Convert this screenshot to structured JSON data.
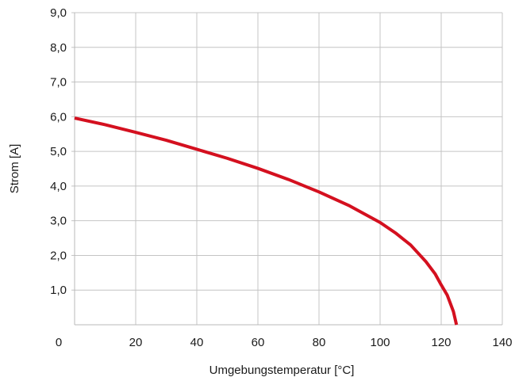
{
  "chart_data": {
    "type": "line",
    "title": "",
    "xlabel": "Umgebungstemperatur [°C]",
    "ylabel": "Strom [A]",
    "xlim": [
      0,
      140
    ],
    "ylim": [
      0,
      9
    ],
    "grid": true,
    "x_ticks": [
      0,
      20,
      40,
      60,
      80,
      100,
      120,
      140
    ],
    "x_tick_labels": [
      "0",
      "20",
      "40",
      "60",
      "80",
      "100",
      "120",
      "140"
    ],
    "y_ticks": [
      1,
      2,
      3,
      4,
      5,
      6,
      7,
      8,
      9
    ],
    "y_tick_labels": [
      "1,0",
      "2,0",
      "3,0",
      "4,0",
      "5,0",
      "6,0",
      "7,0",
      "8,0",
      "9,0"
    ],
    "series": [
      {
        "color": "#d4101f",
        "x": [
          0,
          10,
          20,
          30,
          40,
          50,
          60,
          70,
          80,
          90,
          100,
          105,
          110,
          115,
          118,
          120,
          122,
          124,
          125
        ],
        "y": [
          5.96,
          5.77,
          5.55,
          5.32,
          5.06,
          4.8,
          4.51,
          4.19,
          3.83,
          3.43,
          2.95,
          2.65,
          2.3,
          1.82,
          1.47,
          1.15,
          0.85,
          0.38,
          0.0
        ]
      }
    ]
  }
}
